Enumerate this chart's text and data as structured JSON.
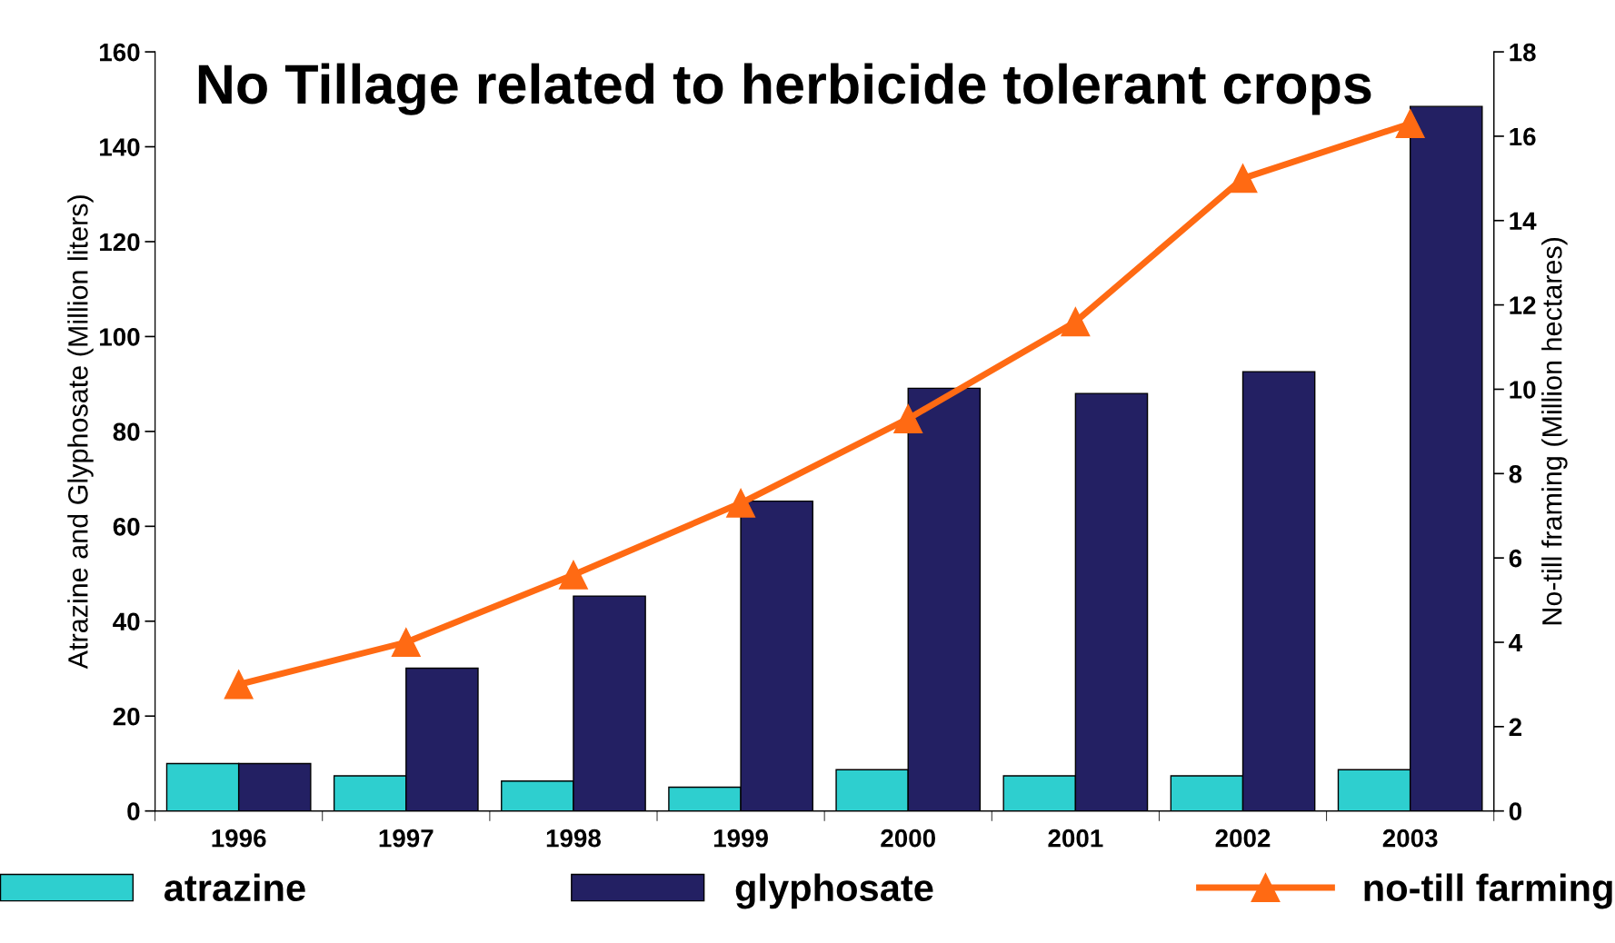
{
  "chart_data": {
    "type": "bar",
    "title": "No Tillage related to herbicide tolerant crops",
    "categories": [
      "1996",
      "1997",
      "1998",
      "1999",
      "2000",
      "2001",
      "2002",
      "2003"
    ],
    "series": [
      {
        "name": "atrazine",
        "color": "#2ecfcf",
        "values": [
          10.0,
          7.4,
          6.3,
          5.0,
          8.7,
          7.4,
          7.4,
          8.7
        ]
      },
      {
        "name": "glyphosate",
        "color": "#232063",
        "values": [
          10.0,
          30.1,
          45.3,
          65.3,
          89.1,
          88.0,
          92.6,
          148.5
        ]
      },
      {
        "name": "no-till farming",
        "type": "line",
        "axis": "y2",
        "color": "#ff6a13",
        "marker": "triangle",
        "values": [
          3.0,
          4.0,
          5.6,
          7.3,
          9.3,
          11.6,
          15.0,
          16.3
        ]
      }
    ],
    "ylabel": "Atrazine and Glyphosate (Million liters)",
    "y2label": "No-till framing (Million hectares)",
    "ylim": [
      0,
      160
    ],
    "yticks": [
      0,
      20,
      40,
      60,
      80,
      100,
      120,
      140,
      160
    ],
    "y2lim": [
      0,
      18
    ],
    "y2ticks": [
      0,
      2,
      4,
      6,
      8,
      10,
      12,
      14,
      16,
      18
    ],
    "grid": false,
    "legend": "bottom"
  }
}
